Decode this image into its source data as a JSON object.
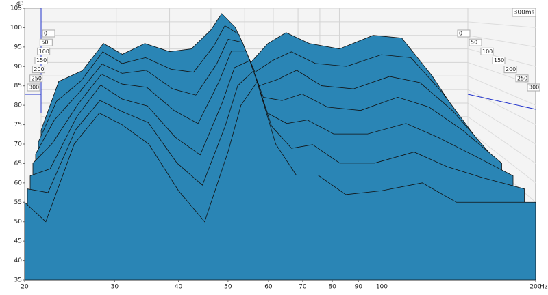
{
  "chart_data": {
    "type": "waterfall",
    "y_unit": "dB",
    "x_unit": "Hz",
    "depth_label": "300ms",
    "color": "#2a85b5",
    "log_x": true,
    "x": [
      20,
      22,
      25,
      28,
      31,
      35,
      40,
      45,
      50,
      53,
      57,
      62,
      68,
      75,
      85,
      100,
      120,
      140,
      165,
      200
    ],
    "series": [
      {
        "name": "0",
        "values": [
          60,
          78,
          82,
          92,
          88,
          92,
          89,
          90,
          97,
          103,
          98,
          85,
          92,
          96,
          92,
          90,
          95,
          94,
          80,
          60
        ]
      },
      {
        "name": "50",
        "values": [
          59,
          73,
          80,
          90,
          86,
          88,
          84,
          83,
          92,
          99,
          96,
          83,
          87,
          90,
          86,
          85,
          89,
          88,
          76,
          59
        ]
      },
      {
        "name": "100",
        "values": [
          58,
          69,
          78,
          87,
          84,
          85,
          79,
          77,
          87,
          95,
          94,
          80,
          82,
          85,
          80,
          79,
          83,
          81,
          72,
          58
        ]
      },
      {
        "name": "150",
        "values": [
          58,
          64,
          76,
          85,
          82,
          81,
          74,
          70,
          83,
          92,
          92,
          78,
          77,
          79,
          75,
          74,
          78,
          75,
          68,
          58
        ]
      },
      {
        "name": "200",
        "values": [
          57,
          59,
          74,
          83,
          79,
          77,
          68,
          63,
          78,
          88,
          90,
          75,
          72,
          73,
          69,
          69,
          72,
          68,
          63,
          57
        ]
      },
      {
        "name": "250",
        "values": [
          56,
          55,
          72,
          80,
          77,
          74,
          63,
          57,
          73,
          84,
          88,
          73,
          67,
          68,
          63,
          63,
          66,
          62,
          59,
          56
        ]
      },
      {
        "name": "300",
        "values": [
          55,
          50,
          70,
          78,
          75,
          70,
          58,
          50,
          68,
          80,
          86,
          70,
          62,
          62,
          57,
          58,
          60,
          55,
          55,
          55
        ]
      }
    ],
    "xlim": [
      20,
      200
    ],
    "xticks": [
      20,
      30,
      40,
      50,
      60,
      70,
      80,
      90,
      100,
      200
    ],
    "ylim": [
      35,
      105
    ],
    "yticks": [
      35,
      40,
      45,
      50,
      55,
      60,
      65,
      70,
      75,
      80,
      85,
      90,
      95,
      100,
      105
    ],
    "grid": true
  }
}
